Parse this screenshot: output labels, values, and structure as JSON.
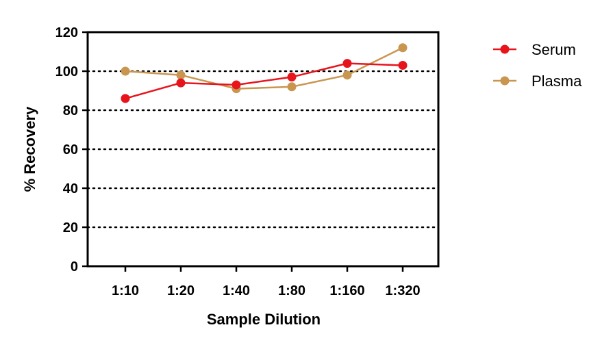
{
  "chart_data": {
    "type": "line",
    "categories": [
      "1:10",
      "1:20",
      "1:40",
      "1:80",
      "1:160",
      "1:320"
    ],
    "series": [
      {
        "name": "Serum",
        "values": [
          86,
          94,
          93,
          97,
          104,
          103
        ],
        "color": "#e8141b"
      },
      {
        "name": "Plasma",
        "values": [
          100,
          98,
          91,
          92,
          98,
          112
        ],
        "color": "#c8964f"
      }
    ],
    "xlabel": "Sample Dilution",
    "ylabel": "% Recovery",
    "ylim": [
      0,
      120
    ],
    "yticks": [
      0,
      20,
      40,
      60,
      80,
      100,
      120
    ],
    "grid": "horizontal dotted",
    "legend_position": "right"
  }
}
